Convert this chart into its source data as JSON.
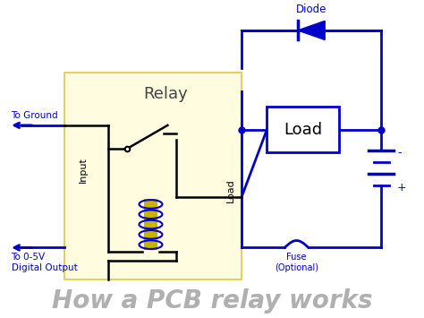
{
  "title": "How a PCB relay works",
  "title_color": "#b0b0b0",
  "title_fontsize": 20,
  "bg_color": "#ffffff",
  "relay_box_color": "#fffce0",
  "relay_box_edge": "#e0c840",
  "relay_label": "Relay",
  "relay_label_color": "#444444",
  "relay_label_fontsize": 13,
  "load_box_color": "#ffffff",
  "load_box_edge": "#0000cc",
  "load_label": "Load",
  "load_label_color": "#000000",
  "load_label_fontsize": 13,
  "diode_label": "Diode",
  "fuse_label": "Fuse\n(Optional)",
  "input_label": "Input",
  "load_side_label": "Load",
  "to_ground_label": "To Ground",
  "to_digital_label": "To 0-5V\nDigital Output",
  "circuit_color": "#0000cc",
  "switch_color": "#000000",
  "coil_color": "#0000cc",
  "coil_core_color": "#c8b400",
  "label_color": "#0000cc",
  "battery_minus": "-",
  "battery_plus": "+"
}
